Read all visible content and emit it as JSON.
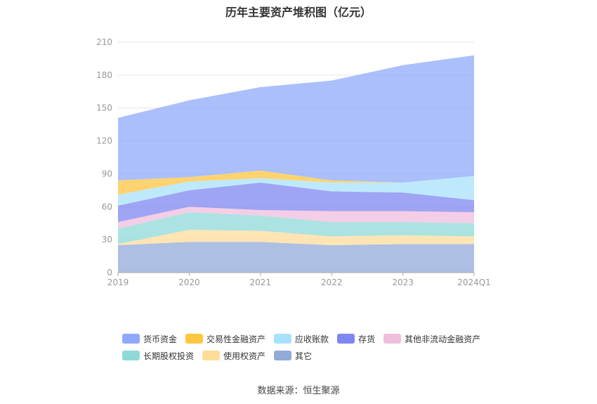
{
  "title": "历年主要资产堆积图（亿元）",
  "source": "数据来源：恒生聚源",
  "chart_data": {
    "type": "area",
    "stacked": true,
    "title": "历年主要资产堆积图（亿元）",
    "categories": [
      "2019",
      "2020",
      "2021",
      "2022",
      "2023",
      "2024Q1"
    ],
    "ylim": [
      0,
      210
    ],
    "yticks": [
      0,
      30,
      60,
      90,
      120,
      150,
      180,
      210
    ],
    "grid": true,
    "legend_position": "bottom",
    "series": [
      {
        "name": "其它",
        "color": "#91aad8",
        "values": [
          25,
          28,
          28,
          25,
          26,
          26
        ]
      },
      {
        "name": "使用权资产",
        "color": "#ffdc9a",
        "values": [
          1,
          11,
          10,
          8,
          8,
          7
        ]
      },
      {
        "name": "长期股权投资",
        "color": "#8fdad8",
        "values": [
          14,
          16,
          14,
          13,
          12,
          12
        ]
      },
      {
        "name": "其他非流动金融资产",
        "color": "#f0bedd",
        "values": [
          6,
          5,
          5,
          10,
          10,
          10
        ]
      },
      {
        "name": "存货",
        "color": "#7f86f0",
        "values": [
          15,
          15,
          25,
          18,
          17,
          11
        ]
      },
      {
        "name": "应收账款",
        "color": "#a8e1fc",
        "values": [
          10,
          8,
          4,
          8,
          9,
          22
        ]
      },
      {
        "name": "交易性金融资产",
        "color": "#ffc640",
        "values": [
          13,
          4,
          7,
          2,
          0,
          0
        ]
      },
      {
        "name": "货币资金",
        "color": "#8ea9fb",
        "values": [
          57,
          70,
          76,
          91,
          107,
          110
        ]
      }
    ],
    "legend_order": [
      "货币资金",
      "交易性金融资产",
      "应收账款",
      "存货",
      "其他非流动金融资产",
      "长期股权投资",
      "使用权资产",
      "其它"
    ]
  }
}
